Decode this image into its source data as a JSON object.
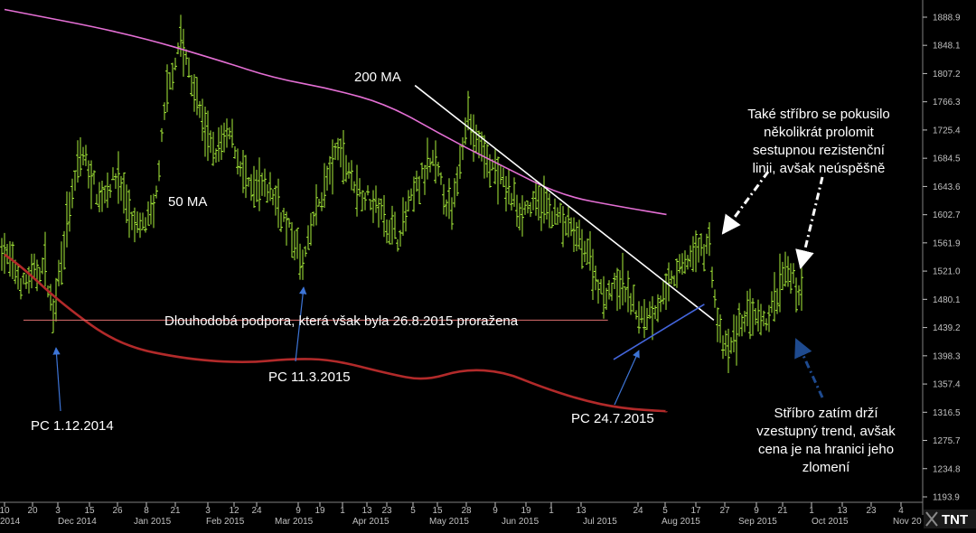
{
  "chart_data": {
    "type": "ohlc",
    "title": "",
    "instrument_hint": "silver (ounce) — price in USD",
    "y_axis": {
      "min": 1200,
      "max": 1900,
      "ticks": [
        1888.9,
        1848.1,
        1807.2,
        1766.3,
        1725.4,
        1684.5,
        1643.6,
        1602.7,
        1561.9,
        1521.0,
        1480.1,
        1439.2,
        1398.3,
        1357.4,
        1316.5,
        1275.7,
        1234.8,
        1193.9
      ]
    },
    "x_axis": {
      "day_ticks": [
        "10",
        "20",
        "3",
        "15",
        "26",
        "8",
        "21",
        "3",
        "12",
        "24",
        "9",
        "19",
        "1",
        "13",
        "23",
        "5",
        "15",
        "28",
        "9",
        "19",
        "1",
        "13",
        "24",
        "5",
        "17",
        "27",
        "9",
        "21",
        "1",
        "13",
        "23",
        "4"
      ],
      "month_labels": [
        "2014",
        "Dec 2014",
        "Jan 2015",
        "Feb 2015",
        "Mar 2015",
        "Apr 2015",
        "May 2015",
        "Jun 2015",
        "Jul 2015",
        "Aug 2015",
        "Sep 2015",
        "Oct 2015",
        "Nov 20"
      ]
    },
    "series": [
      {
        "name": "200 MA",
        "color": "#e46fd4",
        "points": [
          [
            "2014-10-10",
            1900
          ],
          [
            "2014-12-15",
            1865
          ],
          [
            "2015-02-01",
            1826
          ],
          [
            "2015-03-01",
            1801
          ],
          [
            "2015-04-01",
            1785
          ],
          [
            "2015-05-01",
            1762
          ],
          [
            "2015-06-01",
            1714
          ],
          [
            "2015-07-01",
            1672
          ],
          [
            "2015-08-01",
            1630
          ],
          [
            "2015-09-01",
            1614
          ],
          [
            "2015-09-25",
            1603
          ]
        ]
      },
      {
        "name": "50 MA",
        "color": "#b22a2a",
        "points": [
          [
            "2014-10-10",
            1545
          ],
          [
            "2014-10-20",
            1525
          ],
          [
            "2014-11-10",
            1472
          ],
          [
            "2014-12-10",
            1413
          ],
          [
            "2015-01-15",
            1393
          ],
          [
            "2015-02-15",
            1388
          ],
          [
            "2015-03-10",
            1394
          ],
          [
            "2015-04-01",
            1393
          ],
          [
            "2015-04-30",
            1373
          ],
          [
            "2015-05-20",
            1362
          ],
          [
            "2015-06-10",
            1379
          ],
          [
            "2015-07-01",
            1375
          ],
          [
            "2015-07-20",
            1354
          ],
          [
            "2015-08-10",
            1335
          ],
          [
            "2015-09-01",
            1322
          ],
          [
            "2015-09-25",
            1318
          ]
        ]
      }
    ],
    "price_band": {
      "approx_min": 1398,
      "approx_max": 1870
    },
    "trendlines": [
      {
        "name": "resistance",
        "color": "#ffffff",
        "from": [
          "2015-05-15",
          1790
        ],
        "to": [
          "2015-10-20",
          1450
        ]
      },
      {
        "name": "support-up",
        "color": "#4466dd",
        "from": [
          "2015-08-28",
          1393
        ],
        "to": [
          "2015-10-15",
          1473
        ]
      },
      {
        "name": "long-term-support",
        "color": "#e07070",
        "from": [
          "2014-10-20",
          1450
        ],
        "to": [
          "2015-08-25",
          1450
        ]
      }
    ],
    "annotations": [
      {
        "text": "200 MA"
      },
      {
        "text": "50 MA"
      },
      {
        "text": "Dlouhodobá podpora, která však byla 26.8.2015 proražena"
      },
      {
        "text": "PC 1.12.2014"
      },
      {
        "text": "PC 11.3.2015"
      },
      {
        "text": "PC 24.7.2015"
      },
      {
        "text": "Také stříbro se pokusilo několikrát prolomit sestupnou rezistenční linii, avšak neúspěšně",
        "lines": [
          "Také stříbro se pokusilo",
          "několikrát prolomit",
          "sestupnou rezistenční",
          "linii, avšak neúspěšně"
        ]
      },
      {
        "text": "Stříbro zatím drží vzestupný trend, avšak cena je na hranici jeho zlomení",
        "lines": [
          "Stříbro zatím drží",
          "vzestupný trend, avšak",
          "cena je na hranici jeho",
          "zlomení"
        ]
      }
    ],
    "logo": "TNT",
    "grid": false,
    "legend": "none",
    "colors": {
      "background": "#000000",
      "bars": "#a8ee3a",
      "axis_text": "#c0c0c0"
    }
  }
}
